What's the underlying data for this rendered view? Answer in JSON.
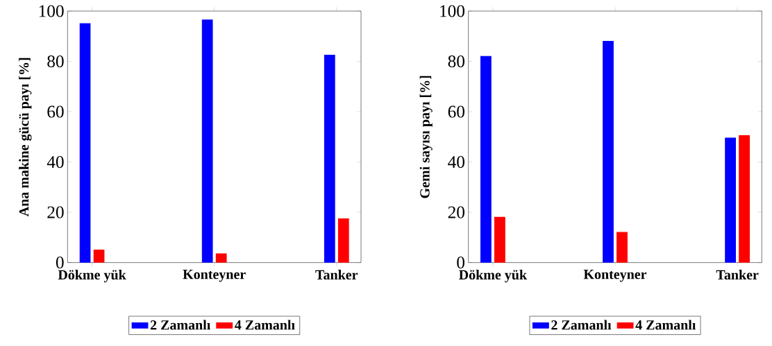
{
  "chart_data": [
    {
      "type": "bar",
      "ylabel": "Ana makine gücü payı [%]",
      "categories": [
        "Dökme yük",
        "Konteyner",
        "Tanker"
      ],
      "series": [
        {
          "name": "2 Zamanlı",
          "color": "#0000ff",
          "values": [
            95,
            96.5,
            82.5
          ]
        },
        {
          "name": "4 Zamanlı",
          "color": "#ff0000",
          "values": [
            5,
            3.5,
            17.5
          ]
        }
      ],
      "ylim": [
        0,
        100
      ],
      "yticks": [
        0,
        20,
        40,
        60,
        80,
        100
      ],
      "legend": "bottom"
    },
    {
      "type": "bar",
      "ylabel": "Gemi sayısı payı [%]",
      "categories": [
        "Dökme yük",
        "Konteyner",
        "Tanker"
      ],
      "series": [
        {
          "name": "2 Zamanlı",
          "color": "#0000ff",
          "values": [
            82,
            88,
            49.5
          ]
        },
        {
          "name": "4 Zamanlı",
          "color": "#ff0000",
          "values": [
            18,
            12,
            50.5
          ]
        }
      ],
      "ylim": [
        0,
        100
      ],
      "yticks": [
        0,
        20,
        40,
        60,
        80,
        100
      ],
      "legend": "bottom"
    }
  ]
}
